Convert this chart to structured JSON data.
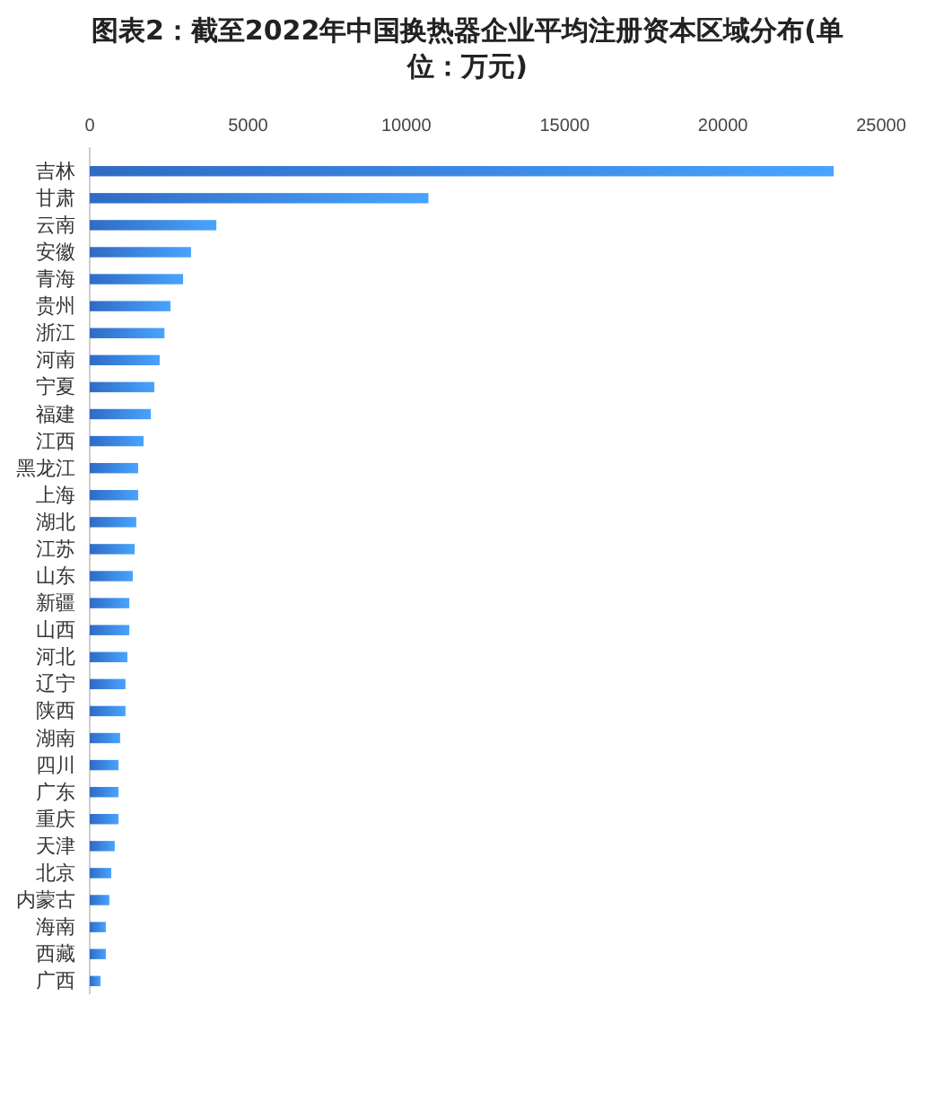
{
  "chart_data": {
    "type": "bar",
    "orientation": "horizontal",
    "title": "图表2：截至2022年中国换热器企业平均注册资本区域分布(单位：万元)",
    "categories": [
      "吉林",
      "甘肃",
      "云南",
      "安徽",
      "青海",
      "贵州",
      "浙江",
      "河南",
      "宁夏",
      "福建",
      "江西",
      "黑龙江",
      "上海",
      "湖北",
      "江苏",
      "山东",
      "新疆",
      "山西",
      "河北",
      "辽宁",
      "陕西",
      "湖南",
      "四川",
      "广东",
      "重庆",
      "天津",
      "北京",
      "内蒙古",
      "海南",
      "西藏",
      "广西"
    ],
    "values": [
      23500,
      10700,
      4000,
      3200,
      2950,
      2550,
      2360,
      2210,
      2040,
      1930,
      1700,
      1530,
      1530,
      1470,
      1420,
      1360,
      1250,
      1250,
      1190,
      1130,
      1130,
      960,
      910,
      910,
      910,
      790,
      680,
      620,
      510,
      510,
      340
    ],
    "color": "#2f6bc4",
    "xlim": [
      0,
      25000
    ],
    "xticks": [
      0,
      5000,
      10000,
      15000,
      20000,
      25000
    ],
    "grid": false
  }
}
